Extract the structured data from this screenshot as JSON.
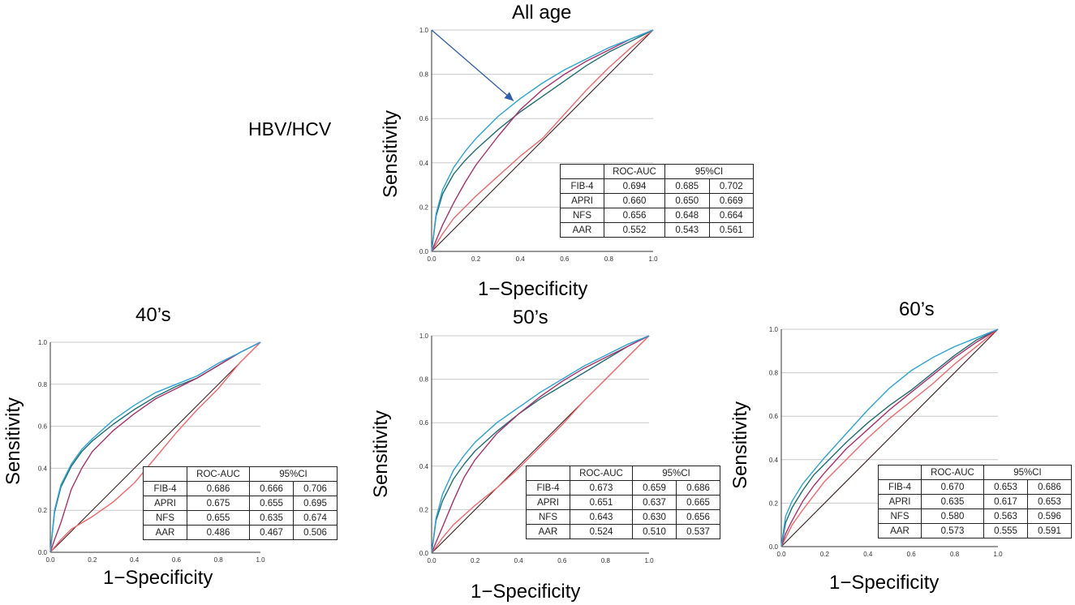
{
  "group_label": "HBV/HCV",
  "colors": {
    "FIB-4": "#2da3d6",
    "APRI": "#a8326c",
    "NFS": "#1f6e72",
    "AAR": "#f0686c",
    "reference": "#3a1e1e",
    "arrow": "#2f5ea8",
    "grid": "#c8c8c8"
  },
  "arrow_annotation": {
    "from": [
      0.0,
      1.0
    ],
    "to": [
      0.37,
      0.68
    ],
    "label": ""
  },
  "table_headers": {
    "metric": "ROC-AUC",
    "ci": "95%CI"
  },
  "chart_data": [
    {
      "type": "line",
      "title": "All age",
      "xlabel": "1−Specificity",
      "ylabel": "Sensitivity",
      "xlim": [
        0,
        1
      ],
      "ylim": [
        0,
        1
      ],
      "xticks": [
        "0.0",
        "0.2",
        "0.4",
        "0.6",
        "0.8",
        "1.0"
      ],
      "yticks": [
        "0.0",
        "0.2",
        "0.4",
        "0.6",
        "0.8",
        "1.0"
      ],
      "series": [
        {
          "name": "FIB-4",
          "auc": "0.694",
          "ci_low": "0.685",
          "ci_high": "0.702",
          "x": [
            0,
            0.02,
            0.05,
            0.1,
            0.15,
            0.2,
            0.3,
            0.4,
            0.5,
            0.6,
            0.7,
            0.8,
            0.9,
            1.0
          ],
          "y": [
            0,
            0.17,
            0.28,
            0.38,
            0.45,
            0.51,
            0.61,
            0.69,
            0.76,
            0.82,
            0.87,
            0.92,
            0.96,
            1.0
          ]
        },
        {
          "name": "APRI",
          "auc": "0.660",
          "ci_low": "0.650",
          "ci_high": "0.669",
          "x": [
            0,
            0.02,
            0.05,
            0.1,
            0.15,
            0.2,
            0.3,
            0.4,
            0.5,
            0.6,
            0.7,
            0.8,
            0.9,
            1.0
          ],
          "y": [
            0,
            0.05,
            0.12,
            0.22,
            0.31,
            0.39,
            0.52,
            0.64,
            0.73,
            0.8,
            0.86,
            0.91,
            0.96,
            1.0
          ]
        },
        {
          "name": "NFS",
          "auc": "0.656",
          "ci_low": "0.648",
          "ci_high": "0.664",
          "x": [
            0,
            0.02,
            0.05,
            0.1,
            0.15,
            0.2,
            0.3,
            0.4,
            0.5,
            0.6,
            0.7,
            0.8,
            0.9,
            1.0
          ],
          "y": [
            0,
            0.16,
            0.26,
            0.35,
            0.41,
            0.46,
            0.55,
            0.63,
            0.7,
            0.77,
            0.84,
            0.9,
            0.95,
            1.0
          ]
        },
        {
          "name": "AAR",
          "auc": "0.552",
          "ci_low": "0.543",
          "ci_high": "0.561",
          "x": [
            0,
            0.05,
            0.1,
            0.2,
            0.3,
            0.4,
            0.5,
            0.6,
            0.7,
            0.8,
            0.9,
            1.0
          ],
          "y": [
            0,
            0.08,
            0.15,
            0.25,
            0.34,
            0.43,
            0.51,
            0.62,
            0.73,
            0.83,
            0.92,
            1.0
          ]
        }
      ]
    },
    {
      "type": "line",
      "title": "40’s",
      "xlabel": "1−Specificity",
      "ylabel": "Sensitivity",
      "xlim": [
        0,
        1
      ],
      "ylim": [
        0,
        1
      ],
      "xticks": [
        "0.0",
        "0.2",
        "0.4",
        "0.6",
        "0.8",
        "1.0"
      ],
      "yticks": [
        "0.0",
        "0.2",
        "0.4",
        "0.6",
        "0.8",
        "1.0"
      ],
      "series": [
        {
          "name": "FIB-4",
          "auc": "0.686",
          "ci_low": "0.666",
          "ci_high": "0.706",
          "x": [
            0,
            0.02,
            0.05,
            0.1,
            0.15,
            0.2,
            0.3,
            0.4,
            0.5,
            0.6,
            0.7,
            0.8,
            0.9,
            1.0
          ],
          "y": [
            0,
            0.2,
            0.32,
            0.42,
            0.49,
            0.54,
            0.63,
            0.7,
            0.76,
            0.8,
            0.84,
            0.9,
            0.95,
            1.0
          ]
        },
        {
          "name": "APRI",
          "auc": "0.675",
          "ci_low": "0.655",
          "ci_high": "0.695",
          "x": [
            0,
            0.02,
            0.05,
            0.1,
            0.15,
            0.2,
            0.3,
            0.4,
            0.5,
            0.6,
            0.7,
            0.8,
            0.9,
            1.0
          ],
          "y": [
            0,
            0.06,
            0.14,
            0.3,
            0.4,
            0.48,
            0.58,
            0.66,
            0.73,
            0.78,
            0.83,
            0.89,
            0.95,
            1.0
          ]
        },
        {
          "name": "NFS",
          "auc": "0.655",
          "ci_low": "0.635",
          "ci_high": "0.674",
          "x": [
            0,
            0.02,
            0.05,
            0.1,
            0.15,
            0.2,
            0.3,
            0.4,
            0.5,
            0.6,
            0.7,
            0.8,
            0.9,
            1.0
          ],
          "y": [
            0,
            0.19,
            0.31,
            0.41,
            0.48,
            0.53,
            0.61,
            0.68,
            0.74,
            0.79,
            0.83,
            0.89,
            0.95,
            1.0
          ]
        },
        {
          "name": "AAR",
          "auc": "0.486",
          "ci_low": "0.467",
          "ci_high": "0.506",
          "x": [
            0,
            0.05,
            0.1,
            0.2,
            0.3,
            0.4,
            0.5,
            0.6,
            0.7,
            0.8,
            0.9,
            1.0
          ],
          "y": [
            0,
            0.06,
            0.11,
            0.17,
            0.24,
            0.33,
            0.45,
            0.57,
            0.68,
            0.78,
            0.9,
            1.0
          ]
        }
      ]
    },
    {
      "type": "line",
      "title": "50’s",
      "xlabel": "1−Specificity",
      "ylabel": "Sensitivity",
      "xlim": [
        0,
        1
      ],
      "ylim": [
        0,
        1
      ],
      "xticks": [
        "0.0",
        "0.2",
        "0.4",
        "0.6",
        "0.8",
        "1.0"
      ],
      "yticks": [
        "0.0",
        "0.2",
        "0.4",
        "0.6",
        "0.8",
        "1.0"
      ],
      "series": [
        {
          "name": "FIB-4",
          "auc": "0.673",
          "ci_low": "0.659",
          "ci_high": "0.686",
          "x": [
            0,
            0.02,
            0.05,
            0.1,
            0.15,
            0.2,
            0.3,
            0.4,
            0.5,
            0.6,
            0.7,
            0.8,
            0.9,
            1.0
          ],
          "y": [
            0,
            0.16,
            0.27,
            0.38,
            0.45,
            0.51,
            0.6,
            0.67,
            0.74,
            0.8,
            0.86,
            0.91,
            0.96,
            1.0
          ]
        },
        {
          "name": "APRI",
          "auc": "0.651",
          "ci_low": "0.637",
          "ci_high": "0.665",
          "x": [
            0,
            0.02,
            0.05,
            0.1,
            0.15,
            0.2,
            0.3,
            0.4,
            0.5,
            0.6,
            0.7,
            0.8,
            0.9,
            1.0
          ],
          "y": [
            0,
            0.05,
            0.12,
            0.24,
            0.35,
            0.43,
            0.55,
            0.64,
            0.72,
            0.79,
            0.85,
            0.9,
            0.95,
            1.0
          ]
        },
        {
          "name": "NFS",
          "auc": "0.643",
          "ci_low": "0.630",
          "ci_high": "0.656",
          "x": [
            0,
            0.02,
            0.05,
            0.1,
            0.15,
            0.2,
            0.3,
            0.4,
            0.5,
            0.6,
            0.7,
            0.8,
            0.9,
            1.0
          ],
          "y": [
            0,
            0.15,
            0.24,
            0.34,
            0.41,
            0.47,
            0.56,
            0.64,
            0.71,
            0.77,
            0.83,
            0.89,
            0.95,
            1.0
          ]
        },
        {
          "name": "AAR",
          "auc": "0.524",
          "ci_low": "0.510",
          "ci_high": "0.537",
          "x": [
            0,
            0.05,
            0.1,
            0.2,
            0.3,
            0.4,
            0.5,
            0.6,
            0.7,
            0.8,
            0.9,
            1.0
          ],
          "y": [
            0,
            0.07,
            0.13,
            0.22,
            0.3,
            0.39,
            0.49,
            0.59,
            0.7,
            0.8,
            0.9,
            1.0
          ]
        }
      ]
    },
    {
      "type": "line",
      "title": "60’s",
      "xlabel": "1−Specificity",
      "ylabel": "Sensitivity",
      "xlim": [
        0,
        1
      ],
      "ylim": [
        0,
        1
      ],
      "xticks": [
        "0.0",
        "0.2",
        "0.4",
        "0.6",
        "0.8",
        "1.0"
      ],
      "yticks": [
        "0.0",
        "0.2",
        "0.4",
        "0.6",
        "0.8",
        "1.0"
      ],
      "series": [
        {
          "name": "FIB-4",
          "auc": "0.670",
          "ci_low": "0.653",
          "ci_high": "0.686",
          "x": [
            0,
            0.02,
            0.05,
            0.1,
            0.15,
            0.2,
            0.3,
            0.4,
            0.5,
            0.6,
            0.7,
            0.8,
            0.9,
            1.0
          ],
          "y": [
            0,
            0.14,
            0.21,
            0.29,
            0.35,
            0.41,
            0.52,
            0.63,
            0.73,
            0.81,
            0.87,
            0.92,
            0.96,
            1.0
          ]
        },
        {
          "name": "APRI",
          "auc": "0.635",
          "ci_low": "0.617",
          "ci_high": "0.653",
          "x": [
            0,
            0.02,
            0.05,
            0.1,
            0.15,
            0.2,
            0.3,
            0.4,
            0.5,
            0.6,
            0.7,
            0.8,
            0.9,
            1.0
          ],
          "y": [
            0,
            0.06,
            0.12,
            0.21,
            0.28,
            0.34,
            0.45,
            0.54,
            0.63,
            0.71,
            0.79,
            0.87,
            0.94,
            1.0
          ]
        },
        {
          "name": "NFS",
          "auc": "0.580",
          "ci_low": "0.563",
          "ci_high": "0.596",
          "x": [
            0,
            0.02,
            0.05,
            0.1,
            0.15,
            0.2,
            0.3,
            0.4,
            0.5,
            0.6,
            0.7,
            0.8,
            0.9,
            1.0
          ],
          "y": [
            0,
            0.11,
            0.18,
            0.26,
            0.33,
            0.38,
            0.48,
            0.57,
            0.65,
            0.72,
            0.8,
            0.88,
            0.95,
            1.0
          ]
        },
        {
          "name": "AAR",
          "auc": "0.573",
          "ci_low": "0.555",
          "ci_high": "0.591",
          "x": [
            0,
            0.05,
            0.1,
            0.2,
            0.3,
            0.4,
            0.5,
            0.6,
            0.7,
            0.8,
            0.9,
            1.0
          ],
          "y": [
            0,
            0.1,
            0.17,
            0.3,
            0.4,
            0.5,
            0.59,
            0.67,
            0.75,
            0.84,
            0.92,
            1.0
          ]
        }
      ]
    }
  ]
}
